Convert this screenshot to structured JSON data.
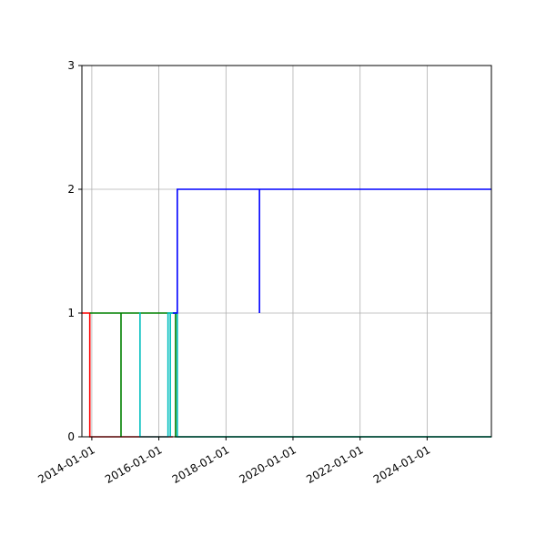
{
  "chart_data": {
    "type": "line",
    "drawstyle": "steps-post",
    "title": "",
    "xlabel": "",
    "ylabel": "",
    "xlim": [
      "2013-09-15",
      "2025-12-01"
    ],
    "ylim": [
      0,
      3
    ],
    "x_ticks": [
      "2014-01-01",
      "2016-01-01",
      "2018-01-01",
      "2020-01-01",
      "2022-01-01",
      "2024-01-01"
    ],
    "y_ticks": [
      "0",
      "1",
      "2",
      "3"
    ],
    "grid": true,
    "legend": "none",
    "series": [
      {
        "color": "#ff0000",
        "points": [
          {
            "x": "2013-09-15",
            "y": 1
          },
          {
            "x": "2013-12-10",
            "y": 0
          },
          {
            "x": "2016-01-25",
            "y": 0
          },
          {
            "x": "2016-06-01",
            "y": 0
          }
        ]
      },
      {
        "color": "#008000",
        "points": [
          {
            "x": "2013-12-10",
            "y": 1
          },
          {
            "x": "2014-11-15",
            "y": 0
          },
          {
            "x": "2014-11-15",
            "y": 1
          },
          {
            "x": "2016-07-01",
            "y": 0
          },
          {
            "x": "2025-12-01",
            "y": 0
          }
        ]
      },
      {
        "color": "#00bfbf",
        "points": [
          {
            "x": "2015-06-01",
            "y": 1
          },
          {
            "x": "2015-06-10",
            "y": 0
          },
          {
            "x": "2016-04-10",
            "y": 0
          },
          {
            "x": "2016-04-10",
            "y": 1
          },
          {
            "x": "2016-05-05",
            "y": 1
          },
          {
            "x": "2016-05-05",
            "y": 0
          },
          {
            "x": "2016-05-05",
            "y": 1
          },
          {
            "x": "2016-07-20",
            "y": 0
          },
          {
            "x": "2025-12-01",
            "y": 0
          }
        ]
      },
      {
        "color": "#0000ff",
        "points": [
          {
            "x": "2016-06-01",
            "y": 1
          },
          {
            "x": "2016-07-20",
            "y": 2
          },
          {
            "x": "2019-01-01",
            "y": 2
          },
          {
            "x": "2019-01-01",
            "y": 1
          },
          {
            "x": "2019-01-01",
            "y": 2
          },
          {
            "x": "2025-12-01",
            "y": 2
          }
        ]
      }
    ]
  }
}
